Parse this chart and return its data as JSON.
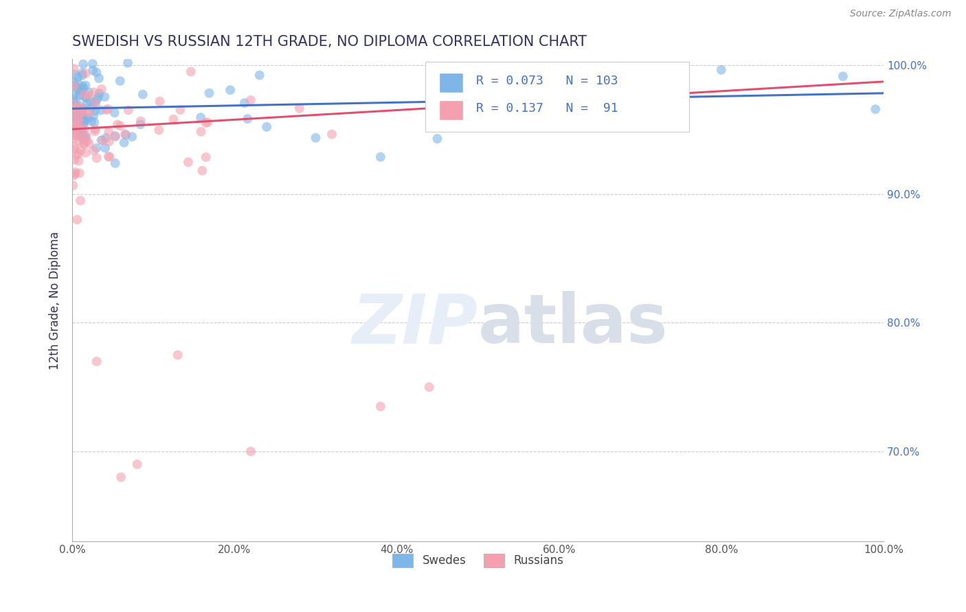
{
  "title": "SWEDISH VS RUSSIAN 12TH GRADE, NO DIPLOMA CORRELATION CHART",
  "source": "Source: ZipAtlas.com",
  "ylabel": "12th Grade, No Diploma",
  "xlim": [
    0.0,
    1.0
  ],
  "ylim": [
    0.63,
    1.005
  ],
  "xticks": [
    0.0,
    0.2,
    0.4,
    0.6,
    0.8,
    1.0
  ],
  "xtick_labels": [
    "0.0%",
    "20.0%",
    "40.0%",
    "60.0%",
    "80.0%",
    "100.0%"
  ],
  "yticks": [
    0.7,
    0.8,
    0.9,
    1.0
  ],
  "ytick_labels": [
    "70.0%",
    "80.0%",
    "90.0%",
    "100.0%"
  ],
  "swedish_R": 0.073,
  "swedish_N": 103,
  "russian_R": 0.137,
  "russian_N": 91,
  "swedish_color": "#7EB6E8",
  "russian_color": "#F4A0B0",
  "swedish_line_color": "#4472C4",
  "russian_line_color": "#E05070",
  "legend_label_swedish": "Swedes",
  "legend_label_russian": "Russians",
  "background_color": "#FFFFFF",
  "grid_color": "#CCCCCC",
  "title_color": "#333366",
  "tick_color": "#4472C4",
  "axis_color": "#AAAAAA",
  "watermark_color": "#E8EEF8",
  "swedish_line_y0": 0.9665,
  "swedish_line_y1": 0.9785,
  "russian_line_y0": 0.9505,
  "russian_line_y1": 0.9875
}
